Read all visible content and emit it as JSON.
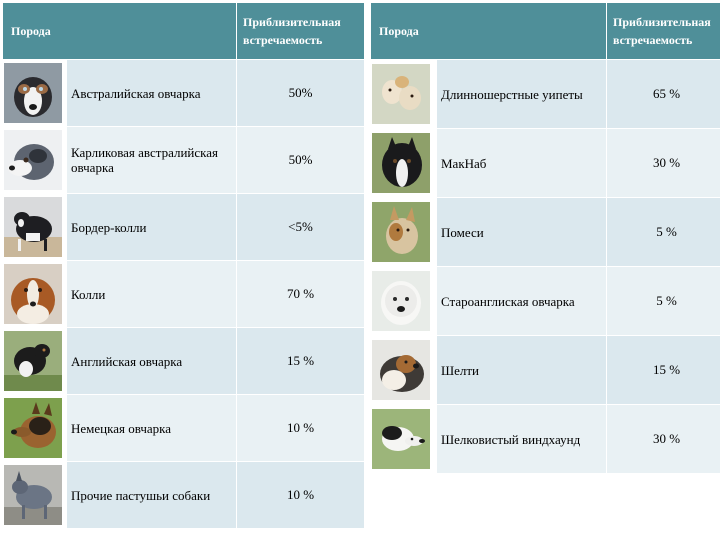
{
  "left_table": {
    "header_breed": "Порода",
    "header_freq": "Приблизительная встречаемость",
    "rows": [
      {
        "name": "Австралийская овчарка",
        "value": "50%",
        "photo": "australian-shepherd-photo"
      },
      {
        "name": "Карликовая австралийская овчарка",
        "value": "50%",
        "photo": "miniature-australian-shepherd-photo"
      },
      {
        "name": "Бордер-колли",
        "value": "<5%",
        "photo": "border-collie-photo"
      },
      {
        "name": "Колли",
        "value": "70 %",
        "photo": "collie-photo"
      },
      {
        "name": "Английская овчарка",
        "value": "15 %",
        "photo": "english-shepherd-photo"
      },
      {
        "name": "Немецкая овчарка",
        "value": "10 %",
        "photo": "german-shepherd-photo"
      },
      {
        "name": "Прочие пастушьи собаки",
        "value": "10 %",
        "photo": "herding-dog-photo"
      }
    ]
  },
  "right_table": {
    "header_breed": "Порода",
    "header_freq": "Приблизительная встречаемость",
    "rows": [
      {
        "name": "Длинношерстные уипеты",
        "value": "65 %",
        "photo": "longhaired-whippet-photo"
      },
      {
        "name": "МакНаб",
        "value": "30 %",
        "photo": "mcnab-photo"
      },
      {
        "name": "Помеси",
        "value": "5 %",
        "photo": "mixed-breed-photo"
      },
      {
        "name": "Староанглиская овчарка",
        "value": "5 %",
        "photo": "old-english-sheepdog-photo"
      },
      {
        "name": "Шелти",
        "value": "15 %",
        "photo": "sheltie-photo"
      },
      {
        "name": "Шелковистый виндхаунд",
        "value": "30 %",
        "photo": "silken-windhound-photo"
      }
    ]
  },
  "colors": {
    "header": "#4f8f99",
    "row_light": "#dbe8ee",
    "row_alt": "#e9f1f4"
  }
}
